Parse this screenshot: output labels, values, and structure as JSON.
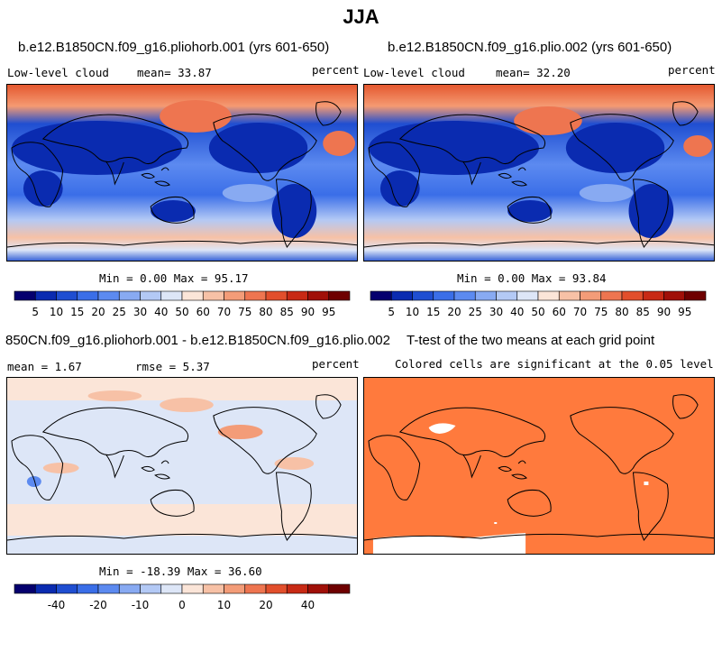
{
  "title": "JJA",
  "panel1": {
    "title": "b.e12.B1850CN.f09_g16.pliohorb.001 (yrs 601-650)",
    "left_label": "Low-level cloud",
    "mean_text": "mean=  33.87",
    "units": "percent",
    "minmax": "Min =   0.00 Max =  95.17"
  },
  "panel2": {
    "title": "b.e12.B1850CN.f09_g16.plio.002 (yrs 601-650)",
    "left_label": "Low-level cloud",
    "mean_text": "mean=  32.20",
    "units": "percent",
    "minmax": "Min =   0.00 Max =  93.84"
  },
  "panel3": {
    "title": "850CN.f09_g16.pliohorb.001 - b.e12.B1850CN.f09_g16.plio.002",
    "mean_text": "mean =   1.67",
    "rmse_text": "rmse =   5.37",
    "units": "percent",
    "minmax": "Min = -18.39 Max =  36.60"
  },
  "panel4": {
    "title": "T-test of the two means at each grid point",
    "subtitle": "Colored cells are significant at the 0.05 level",
    "color": "#ff7a3d"
  },
  "chart_data": [
    {
      "type": "heatmap",
      "name": "cloud-colorbar",
      "levels": [
        5,
        10,
        15,
        20,
        25,
        30,
        40,
        50,
        60,
        70,
        75,
        80,
        85,
        90,
        95
      ],
      "tick_labels": [
        "5",
        "10",
        "15",
        "20",
        "25",
        "30",
        "40",
        "50",
        "60",
        "70",
        "75",
        "80",
        "85",
        "90",
        "95"
      ],
      "colors": [
        "#05006e",
        "#0a2bb0",
        "#1f4ed1",
        "#3a6ee8",
        "#5c8af0",
        "#88aaf2",
        "#b3c9f5",
        "#dde6f7",
        "#fbe5d8",
        "#f7c1a6",
        "#f39c78",
        "#ee7550",
        "#e24f2c",
        "#c82a15",
        "#a01008",
        "#6e0000"
      ]
    },
    {
      "type": "heatmap",
      "name": "diff-colorbar",
      "levels": [
        -50,
        -40,
        -30,
        -20,
        -15,
        -10,
        -5,
        0,
        5,
        10,
        15,
        20,
        30,
        40,
        50
      ],
      "tick_labels": [
        "-40",
        "-20",
        "-10",
        "0",
        "10",
        "20",
        "40"
      ],
      "colors": [
        "#05006e",
        "#0a2bb0",
        "#1f4ed1",
        "#3a6ee8",
        "#5c8af0",
        "#88aaf2",
        "#b3c9f5",
        "#dde6f7",
        "#fbe5d8",
        "#f7c1a6",
        "#f39c78",
        "#ee7550",
        "#e24f2c",
        "#c82a15",
        "#a01008",
        "#6e0000"
      ]
    }
  ]
}
